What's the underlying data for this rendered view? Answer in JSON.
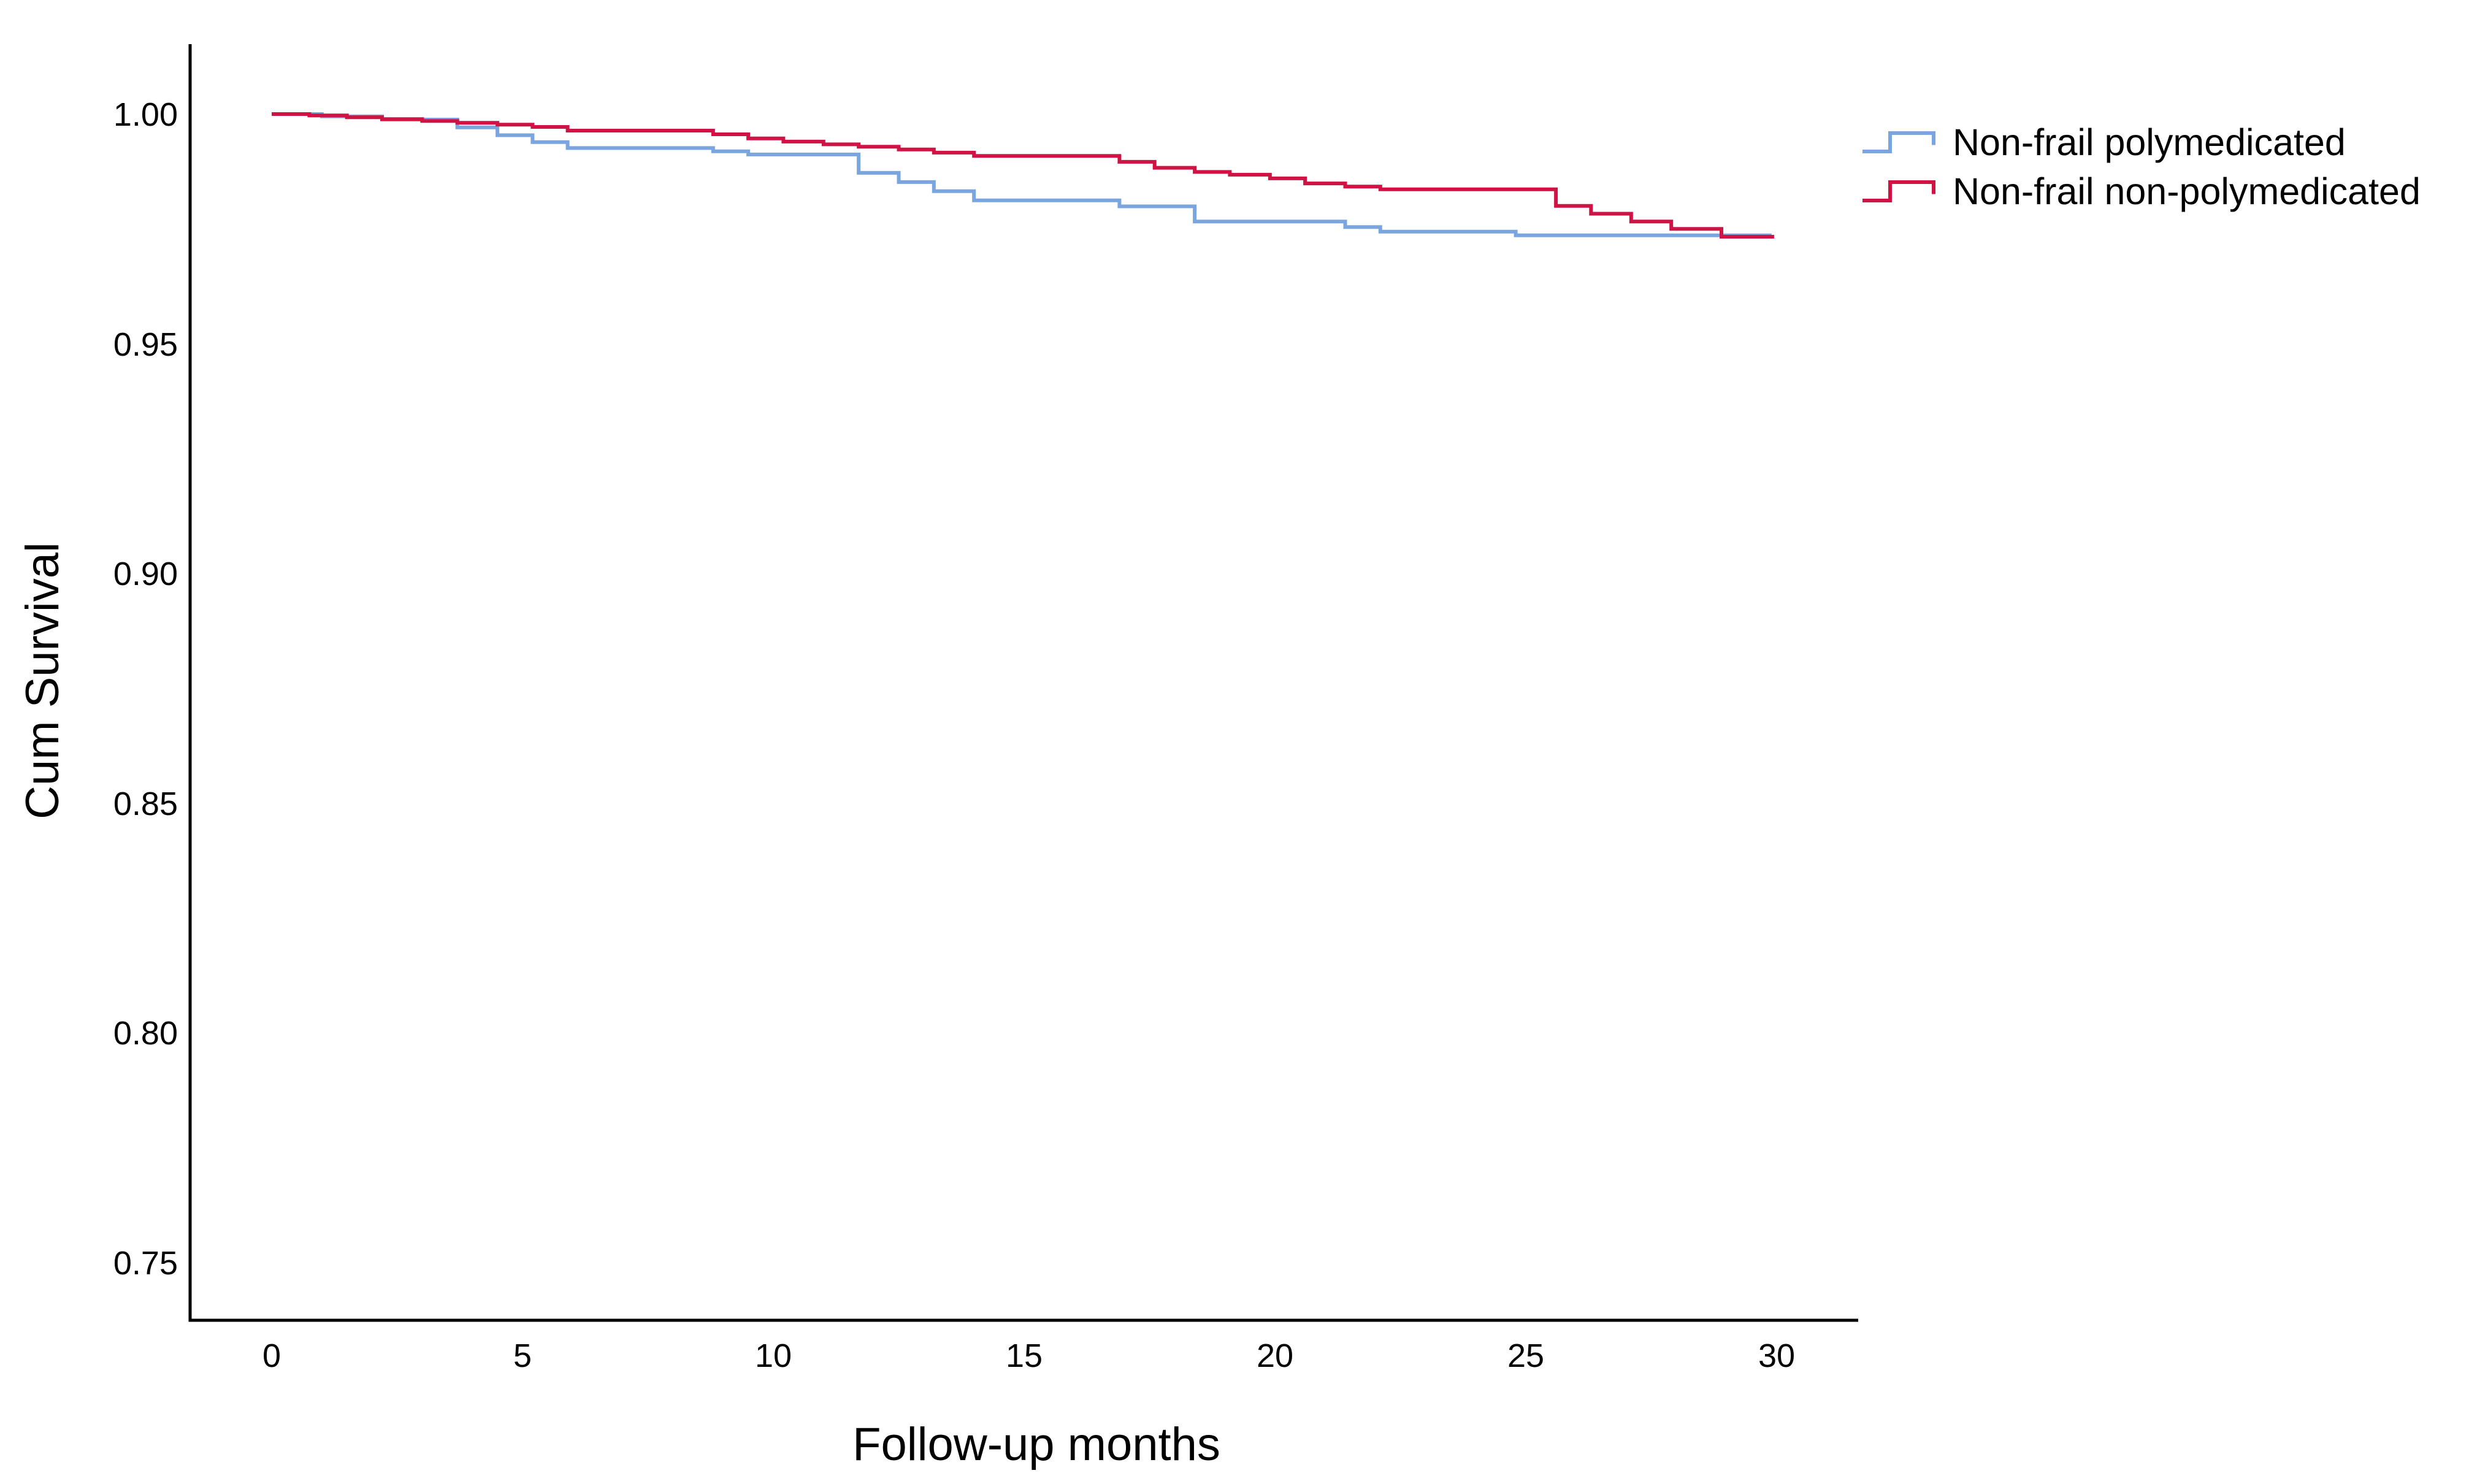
{
  "chart_data": {
    "type": "line",
    "subtype": "kaplan-meier-step-survival",
    "title": "",
    "xlabel": "Follow-up months",
    "ylabel": "Cum Survival",
    "xlim": [
      0,
      30
    ],
    "ylim": [
      0.74,
      1.005
    ],
    "xticks": [
      "0",
      "5",
      "10",
      "15",
      "20",
      "25",
      "30"
    ],
    "xtick_values": [
      0,
      5,
      10,
      15,
      20,
      25,
      30
    ],
    "yticks": [
      "1.00",
      "0.95",
      "0.90",
      "0.85",
      "0.80",
      "0.75"
    ],
    "ytick_values": [
      1.0,
      0.95,
      0.9,
      0.85,
      0.8,
      0.75
    ],
    "grid": false,
    "legend_position": "top-right",
    "axis_color": "#000000",
    "series": [
      {
        "name": "Non-frail polymedicated",
        "color": "#7AA5DF",
        "step": "after",
        "end_month": 29.9,
        "points": [
          [
            0.0,
            1.0
          ],
          [
            1.0,
            0.9995
          ],
          [
            2.2,
            0.9988
          ],
          [
            3.7,
            0.9971
          ],
          [
            4.5,
            0.9954
          ],
          [
            5.2,
            0.9939
          ],
          [
            5.9,
            0.9926
          ],
          [
            8.8,
            0.9919
          ],
          [
            9.5,
            0.9912
          ],
          [
            11.7,
            0.9872
          ],
          [
            12.5,
            0.9852
          ],
          [
            13.2,
            0.9832
          ],
          [
            14.0,
            0.9812
          ],
          [
            16.9,
            0.9799
          ],
          [
            18.4,
            0.9766
          ],
          [
            21.4,
            0.9754
          ],
          [
            22.1,
            0.9744
          ],
          [
            24.8,
            0.9736
          ]
        ]
      },
      {
        "name": "Non-frail non-polymedicated",
        "color": "#D01245",
        "step": "after",
        "end_month": 29.95,
        "points": [
          [
            0.0,
            1.0
          ],
          [
            0.75,
            0.9997
          ],
          [
            1.5,
            0.9993
          ],
          [
            2.2,
            0.9989
          ],
          [
            3.0,
            0.9985
          ],
          [
            3.7,
            0.9981
          ],
          [
            4.5,
            0.9977
          ],
          [
            5.2,
            0.9972
          ],
          [
            5.9,
            0.9964
          ],
          [
            8.8,
            0.9956
          ],
          [
            9.5,
            0.9947
          ],
          [
            10.2,
            0.994
          ],
          [
            11.0,
            0.9934
          ],
          [
            11.7,
            0.9929
          ],
          [
            12.5,
            0.9923
          ],
          [
            13.2,
            0.9916
          ],
          [
            14.0,
            0.9909
          ],
          [
            16.9,
            0.9896
          ],
          [
            17.6,
            0.9883
          ],
          [
            18.4,
            0.9874
          ],
          [
            19.1,
            0.9868
          ],
          [
            19.9,
            0.986
          ],
          [
            20.6,
            0.9849
          ],
          [
            21.4,
            0.9842
          ],
          [
            22.1,
            0.9836
          ],
          [
            25.6,
            0.98
          ],
          [
            26.3,
            0.9783
          ],
          [
            27.1,
            0.9766
          ],
          [
            27.9,
            0.975
          ],
          [
            28.9,
            0.9733
          ]
        ]
      }
    ]
  }
}
